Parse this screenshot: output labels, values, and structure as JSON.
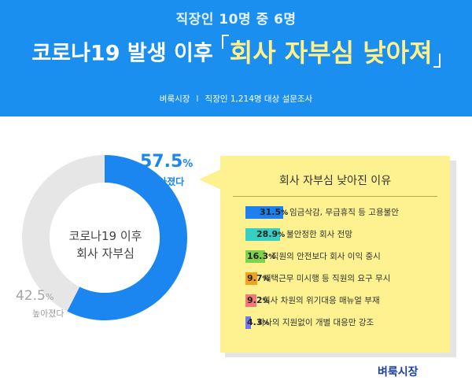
{
  "header": {
    "pre_title": "직장인 10명 중 6명",
    "title_main": "코로나19 발생 이후",
    "title_highlight": "회사 자부심 낮아져",
    "source_brand": "벼룩시장",
    "source_separator": "I",
    "source_desc": "직장인 1,214명 대상 설문조사"
  },
  "colors": {
    "header_bg": "#1a8ff0",
    "accent_blue": "#1b86f0",
    "panel_bg": "#fdf190",
    "neutral_gray": "#e6e6e6"
  },
  "chart_data": [
    {
      "type": "pie",
      "center_label_line1": "코로나19 이후",
      "center_label_line2": "회사 자부심",
      "slices": [
        {
          "label": "낮아졌다",
          "value": 57.5,
          "display": "57.5",
          "unit": "%",
          "color": "#1b86f0"
        },
        {
          "label": "높아졌다",
          "value": 42.5,
          "display": "42.5",
          "unit": "%",
          "color": "#e6e6e6"
        }
      ]
    },
    {
      "type": "bar",
      "title": "회사 자부심 낮아진 이유",
      "xlim": [
        0,
        31.5
      ],
      "bars": [
        {
          "label": "임금삭감, 무급휴직 등 고용불안",
          "value": 31.5,
          "display": "31.5",
          "unit": "%",
          "color": "#1c80ee"
        },
        {
          "label": "불안정한 회사 전망",
          "value": 28.9,
          "display": "28.9",
          "unit": "%",
          "color": "#36d0c3"
        },
        {
          "label": "직원의 안전보다 회사 이익 중시",
          "value": 16.3,
          "display": "16.3",
          "unit": "%",
          "color": "#7fd34b"
        },
        {
          "label": "재택근무 미시행 등 직원의 요구 무시",
          "value": 9.7,
          "display": "9.7",
          "unit": "%",
          "color": "#f3a21c"
        },
        {
          "label": "회사 차원의 위기대응 매뉴얼 부재",
          "value": 9.2,
          "display": "9.2",
          "unit": "%",
          "color": "#f2787a"
        },
        {
          "label": "회사의 지원없이 개별 대응만 강조",
          "value": 4.3,
          "display": "4.3",
          "unit": "%",
          "color": "#6f78ec"
        }
      ]
    }
  ],
  "footer": {
    "brand": "벼룩시장"
  }
}
